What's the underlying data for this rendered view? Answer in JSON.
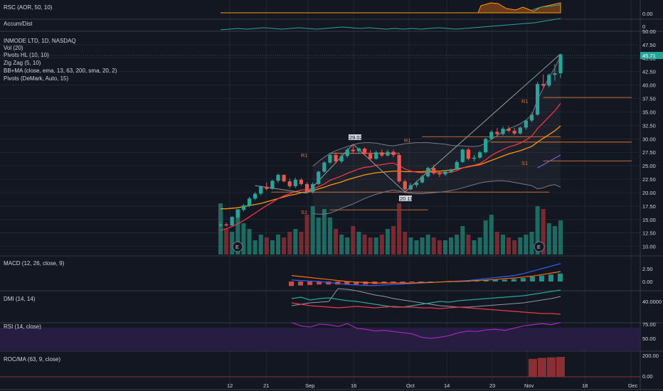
{
  "colors": {
    "background": "#131722",
    "grid": "#2a2e39",
    "up": "#26a69a",
    "down": "#ef5350",
    "volume_up": "#1f7a6e",
    "volume_down": "#8a2f33",
    "pivot_line": "#e0722e",
    "ema13": "#f23645",
    "ema63": "#ff9800",
    "ema200": "#7e57c2",
    "bb": "#787b86",
    "zigzag": "#8aa39a",
    "macd": "#2962ff",
    "signal": "#ff6d00",
    "dmi_plus": "#26a69a",
    "dmi_minus": "#f23645",
    "adx": "#9598a1",
    "rsi": "#9c27b0",
    "rsi_band": "#2a1d45",
    "rsc": "#ff9800",
    "accum": "#26a69a",
    "roc": "#8a2f33",
    "last_price_badge": "#26a69a"
  },
  "panels": {
    "rsc": {
      "label": "RSC (AOR, 50, 10)",
      "axis": [
        "0.00"
      ]
    },
    "accum": {
      "label": "Accum/Dist",
      "axis": [
        "0"
      ]
    },
    "main": {
      "title": "INMODE LTD, 1D, NASDAQ",
      "indicators": [
        "Vol (20)",
        "Pivots HL (10, 10)",
        "Zig Zag (5, 10)",
        "BB+MA (close, ema, 13, 63, 200, sma, 20, 2)",
        "Pivots (DeMark, Auto, 15)"
      ],
      "axis": [
        "50.00",
        "47.50",
        "45.00",
        "42.50",
        "40.00",
        "37.50",
        "35.00",
        "32.50",
        "30.00",
        "27.50",
        "25.00",
        "22.50",
        "20.00",
        "17.50",
        "15.00",
        "12.50",
        "10.00"
      ],
      "last_price": "45.71",
      "pivot_labels": {
        "high_peak": "29.02",
        "low_trough": "20.11"
      },
      "demark_labels": [
        "R1",
        "R1",
        "R1",
        "S1",
        "S1"
      ],
      "earnings_marker": "E"
    },
    "macd": {
      "label": "MACD (12, 26, close, 9)",
      "axis": [
        "2.50",
        "0.00"
      ]
    },
    "dmi": {
      "label": "DMI (14, 14)",
      "axis": [
        "40.0000"
      ]
    },
    "rsi": {
      "label": "RSI (14, close)",
      "axis": [
        "75.00",
        "50.00"
      ]
    },
    "roc": {
      "label": "ROC/MA (63, 9, close)",
      "axis": [
        "200.00",
        "0.00"
      ]
    }
  },
  "x_axis": [
    "12",
    "21",
    "Sep",
    "16",
    "Oct",
    "14",
    "23",
    "Nov",
    "18",
    "Dec"
  ],
  "chart_data": {
    "type": "candlestick",
    "title": "INMODE LTD, 1D, NASDAQ",
    "y_axis": {
      "min": 8.5,
      "max": 50,
      "ticks": [
        10,
        12.5,
        15,
        17.5,
        20,
        22.5,
        25,
        27.5,
        30,
        32.5,
        35,
        37.5,
        40,
        42.5,
        45,
        47.5,
        50
      ]
    },
    "ohlc": [
      [
        13.9,
        14.5,
        13.6,
        14.1
      ],
      [
        14.1,
        14.4,
        13.7,
        13.9
      ],
      [
        13.9,
        15.6,
        13.8,
        15.5
      ],
      [
        15.4,
        16.9,
        15.1,
        16.8
      ],
      [
        16.8,
        17.9,
        16.5,
        17.6
      ],
      [
        17.6,
        19.2,
        17.3,
        18.9
      ],
      [
        18.9,
        20.1,
        18.6,
        19.8
      ],
      [
        19.8,
        21.3,
        19.5,
        21.1
      ],
      [
        21.1,
        21.9,
        20.4,
        20.7
      ],
      [
        20.7,
        22.4,
        20.5,
        22.2
      ],
      [
        22.2,
        23.6,
        21.8,
        23.3
      ],
      [
        23.3,
        23.4,
        21.9,
        22.1
      ],
      [
        22.1,
        22.6,
        20.8,
        21.2
      ],
      [
        21.2,
        22.8,
        20.9,
        22.4
      ],
      [
        22.4,
        22.7,
        21.3,
        21.6
      ],
      [
        21.6,
        21.9,
        19.9,
        20.1
      ],
      [
        20.1,
        21.9,
        19.8,
        21.6
      ],
      [
        21.6,
        24.1,
        21.4,
        23.9
      ],
      [
        23.9,
        25.8,
        23.7,
        25.6
      ],
      [
        25.6,
        27.4,
        25.3,
        27.0
      ],
      [
        27.0,
        27.5,
        25.4,
        25.8
      ],
      [
        25.8,
        27.2,
        25.5,
        26.8
      ],
      [
        26.8,
        28.3,
        26.5,
        28.0
      ],
      [
        28.0,
        29.0,
        27.3,
        27.7
      ],
      [
        27.7,
        28.4,
        27.2,
        28.2
      ],
      [
        28.2,
        28.4,
        26.9,
        27.2
      ],
      [
        27.2,
        27.9,
        25.9,
        26.3
      ],
      [
        26.3,
        27.8,
        26.1,
        27.5
      ],
      [
        27.5,
        28.0,
        26.6,
        26.9
      ],
      [
        26.9,
        28.0,
        26.7,
        27.6
      ],
      [
        27.6,
        28.0,
        26.6,
        27.0
      ],
      [
        27.0,
        27.4,
        21.8,
        22.1
      ],
      [
        22.1,
        22.4,
        20.1,
        20.6
      ],
      [
        20.6,
        21.8,
        20.4,
        21.4
      ],
      [
        21.4,
        22.2,
        21.0,
        21.9
      ],
      [
        21.9,
        23.3,
        21.7,
        23.0
      ],
      [
        23.0,
        24.8,
        22.8,
        24.6
      ],
      [
        24.6,
        25.2,
        23.3,
        23.6
      ],
      [
        23.6,
        24.0,
        22.9,
        23.4
      ],
      [
        23.4,
        24.2,
        23.1,
        23.9
      ],
      [
        23.9,
        24.5,
        23.6,
        24.3
      ],
      [
        24.3,
        26.0,
        24.2,
        25.7
      ],
      [
        25.7,
        28.2,
        25.5,
        28.0
      ],
      [
        28.0,
        28.3,
        26.0,
        26.3
      ],
      [
        26.3,
        27.0,
        25.8,
        26.5
      ],
      [
        26.5,
        27.8,
        26.3,
        27.5
      ],
      [
        27.5,
        30.2,
        27.3,
        30.0
      ],
      [
        30.0,
        31.6,
        29.8,
        31.3
      ],
      [
        31.3,
        32.0,
        30.6,
        30.9
      ],
      [
        30.9,
        32.3,
        30.6,
        31.9
      ],
      [
        31.9,
        32.4,
        31.2,
        31.5
      ],
      [
        31.5,
        32.0,
        30.7,
        31.0
      ],
      [
        31.0,
        32.3,
        30.8,
        32.1
      ],
      [
        32.1,
        33.6,
        31.7,
        33.4
      ],
      [
        33.4,
        34.9,
        33.1,
        34.5
      ],
      [
        34.5,
        40.6,
        34.3,
        40.2
      ],
      [
        40.2,
        42.0,
        39.5,
        39.9
      ],
      [
        39.9,
        42.2,
        39.6,
        41.9
      ],
      [
        41.9,
        43.9,
        40.8,
        42.2
      ],
      [
        42.2,
        45.8,
        41.3,
        45.71
      ]
    ],
    "volume": [
      18,
      9,
      8,
      16,
      11,
      9,
      5,
      7,
      6,
      5,
      7,
      6,
      8,
      9,
      8,
      14,
      17,
      13,
      16,
      13,
      9,
      7,
      6,
      10,
      8,
      7,
      6,
      6,
      7,
      9,
      10,
      18,
      8,
      6,
      5,
      6,
      7,
      6,
      5,
      5,
      6,
      7,
      10,
      7,
      5,
      6,
      12,
      14,
      8,
      7,
      6,
      5,
      6,
      7,
      8,
      17,
      16,
      11,
      10,
      12
    ],
    "ema13": [
      13.0,
      13.3,
      13.7,
      14.2,
      14.8,
      15.5,
      16.2,
      16.9,
      17.6,
      18.2,
      18.9,
      19.4,
      19.8,
      20.2,
      20.5,
      20.6,
      20.7,
      21.1,
      21.6,
      22.3,
      22.7,
      23.1,
      23.6,
      24.0,
      24.4,
      24.7,
      24.8,
      25.1,
      25.2,
      25.4,
      25.5,
      25.0,
      24.4,
      24.0,
      23.8,
      23.7,
      23.8,
      23.8,
      23.7,
      23.7,
      23.8,
      24.1,
      24.6,
      24.9,
      25.1,
      25.4,
      26.1,
      26.9,
      27.5,
      28.0,
      28.5,
      28.8,
      29.2,
      29.8,
      30.5,
      31.9,
      33.0,
      34.1,
      35.2,
      36.6
    ],
    "ema63": [
      17.0,
      17.0,
      17.1,
      17.2,
      17.4,
      17.6,
      17.8,
      18.0,
      18.3,
      18.6,
      18.9,
      19.2,
      19.5,
      19.7,
      20.0,
      20.2,
      20.4,
      20.7,
      21.0,
      21.4,
      21.7,
      22.0,
      22.4,
      22.7,
      23.0,
      23.3,
      23.5,
      23.7,
      23.8,
      23.9,
      24.0,
      24.0,
      23.9,
      23.9,
      23.9,
      23.9,
      24.0,
      24.0,
      24.0,
      24.1,
      24.2,
      24.4,
      24.6,
      24.8,
      25.0,
      25.2,
      25.6,
      26.0,
      26.4,
      26.8,
      27.2,
      27.5,
      27.8,
      28.2,
      28.6,
      29.4,
      30.1,
      30.8,
      31.5,
      32.4
    ],
    "ema200": [
      null,
      null,
      null,
      null,
      null,
      null,
      null,
      null,
      null,
      null,
      null,
      null,
      null,
      null,
      null,
      null,
      null,
      null,
      null,
      null,
      null,
      null,
      null,
      null,
      null,
      null,
      null,
      null,
      null,
      null,
      null,
      null,
      null,
      null,
      null,
      null,
      null,
      null,
      null,
      null,
      null,
      null,
      null,
      null,
      null,
      null,
      null,
      null,
      null,
      null,
      null,
      null,
      null,
      null,
      null,
      24.6,
      25.2,
      25.8,
      26.4,
      27.0
    ],
    "bb_upper": [
      null,
      null,
      null,
      null,
      null,
      null,
      null,
      null,
      null,
      null,
      null,
      null,
      null,
      null,
      null,
      null,
      24.9,
      25.8,
      26.6,
      27.3,
      27.8,
      28.2,
      28.6,
      28.9,
      29.2,
      29.3,
      29.3,
      29.2,
      29.0,
      28.8,
      28.7,
      28.9,
      29.1,
      29.2,
      29.3,
      29.3,
      29.3,
      29.2,
      29.1,
      29.0,
      28.8,
      28.7,
      28.7,
      28.6,
      28.6,
      28.7,
      29.2,
      29.9,
      30.6,
      31.3,
      31.9,
      32.3,
      32.8,
      33.5,
      34.4,
      37.3,
      39.4,
      41.4,
      43.2,
      45.4
    ],
    "bb_lower": [
      null,
      null,
      null,
      null,
      null,
      null,
      null,
      null,
      null,
      null,
      null,
      null,
      null,
      null,
      null,
      null,
      16.1,
      16.0,
      16.0,
      16.2,
      16.6,
      17.1,
      17.5,
      17.9,
      18.4,
      18.9,
      19.3,
      19.7,
      20.0,
      20.3,
      20.5,
      20.3,
      20.0,
      19.9,
      19.8,
      19.8,
      19.9,
      20.0,
      20.1,
      20.2,
      20.4,
      20.6,
      20.9,
      21.2,
      21.5,
      21.8,
      22.0,
      22.1,
      22.2,
      22.2,
      22.1,
      21.9,
      21.7,
      21.5,
      21.3,
      20.7,
      20.9,
      21.3,
      21.5,
      21.0
    ],
    "pivots": {
      "demark": [
        {
          "label": "R1",
          "value": 27.3,
          "from": 19,
          "to": 31
        },
        {
          "label": "S1",
          "value": 16.8,
          "from": 19,
          "to": 36
        },
        {
          "label": "R1",
          "value": 30.4,
          "from": 35,
          "to": 59
        },
        {
          "label": "R1",
          "value": 37.7,
          "from": 56,
          "to": 63
        },
        {
          "label": "S1",
          "value": 25.9,
          "from": 56,
          "to": 63
        }
      ],
      "flat_levels": [
        {
          "value": 20.1,
          "from": 15,
          "to": 57
        },
        {
          "value": 29.4,
          "from": 53,
          "to": 63
        }
      ]
    },
    "zigzag": [
      [
        6,
        21.3
      ],
      [
        15,
        19.9
      ],
      [
        23,
        29.0
      ],
      [
        32,
        20.1
      ],
      [
        59,
        45.8
      ]
    ],
    "macd": [
      0.3,
      0.2,
      0.1,
      0.0,
      -0.2,
      -0.4,
      -0.6,
      -0.7,
      -0.8,
      -0.8,
      -0.7,
      -0.6,
      -0.5,
      -0.4,
      -0.3,
      -0.2,
      -0.1,
      0.0,
      0.1,
      0.2,
      0.4,
      0.6,
      0.8,
      1.0,
      1.2,
      1.6,
      2.1,
      2.6,
      3.1,
      3.6
    ],
    "macd_signal": [
      1.2,
      1.0,
      0.8,
      0.6,
      0.4,
      0.2,
      0.0,
      -0.1,
      -0.2,
      -0.3,
      -0.3,
      -0.3,
      -0.3,
      -0.3,
      -0.2,
      -0.2,
      -0.1,
      0.0,
      0.0,
      0.1,
      0.2,
      0.3,
      0.4,
      0.6,
      0.7,
      0.9,
      1.1,
      1.4,
      1.7,
      2.0
    ],
    "rsi": [
      78,
      72,
      70,
      75,
      74,
      71,
      76,
      68,
      66,
      63,
      64,
      62,
      60,
      58,
      52,
      50,
      52,
      55,
      60,
      63,
      62,
      65,
      66,
      64,
      68,
      72,
      74,
      76,
      74,
      78
    ],
    "dmi_plus": [
      30,
      32,
      28,
      30,
      31,
      29,
      27,
      26,
      24,
      22,
      20,
      18,
      18,
      20,
      22,
      24,
      26,
      25,
      27,
      28,
      29,
      30,
      31,
      32,
      33,
      34,
      36,
      38,
      40,
      42
    ],
    "dmi_minus": [
      24,
      22,
      20,
      19,
      18,
      17,
      18,
      19,
      18,
      17,
      18,
      19,
      18,
      18,
      17,
      17,
      16,
      17,
      18,
      17,
      16,
      15,
      14,
      13,
      12,
      11,
      10,
      9,
      9,
      8
    ],
    "adx": [
      20,
      22,
      24,
      25,
      26,
      44,
      43,
      41,
      38,
      35,
      33,
      30,
      28,
      26,
      24,
      22,
      20,
      19,
      18,
      18,
      19,
      20,
      21,
      22,
      23,
      24,
      26,
      28,
      30,
      33
    ],
    "roc": [
      0,
      0,
      0,
      0,
      0,
      0,
      0,
      0,
      0,
      0,
      0,
      0,
      0,
      0,
      0,
      0,
      0,
      0,
      0,
      0,
      0,
      0,
      0,
      0,
      0,
      0,
      180,
      190,
      195,
      200
    ]
  }
}
